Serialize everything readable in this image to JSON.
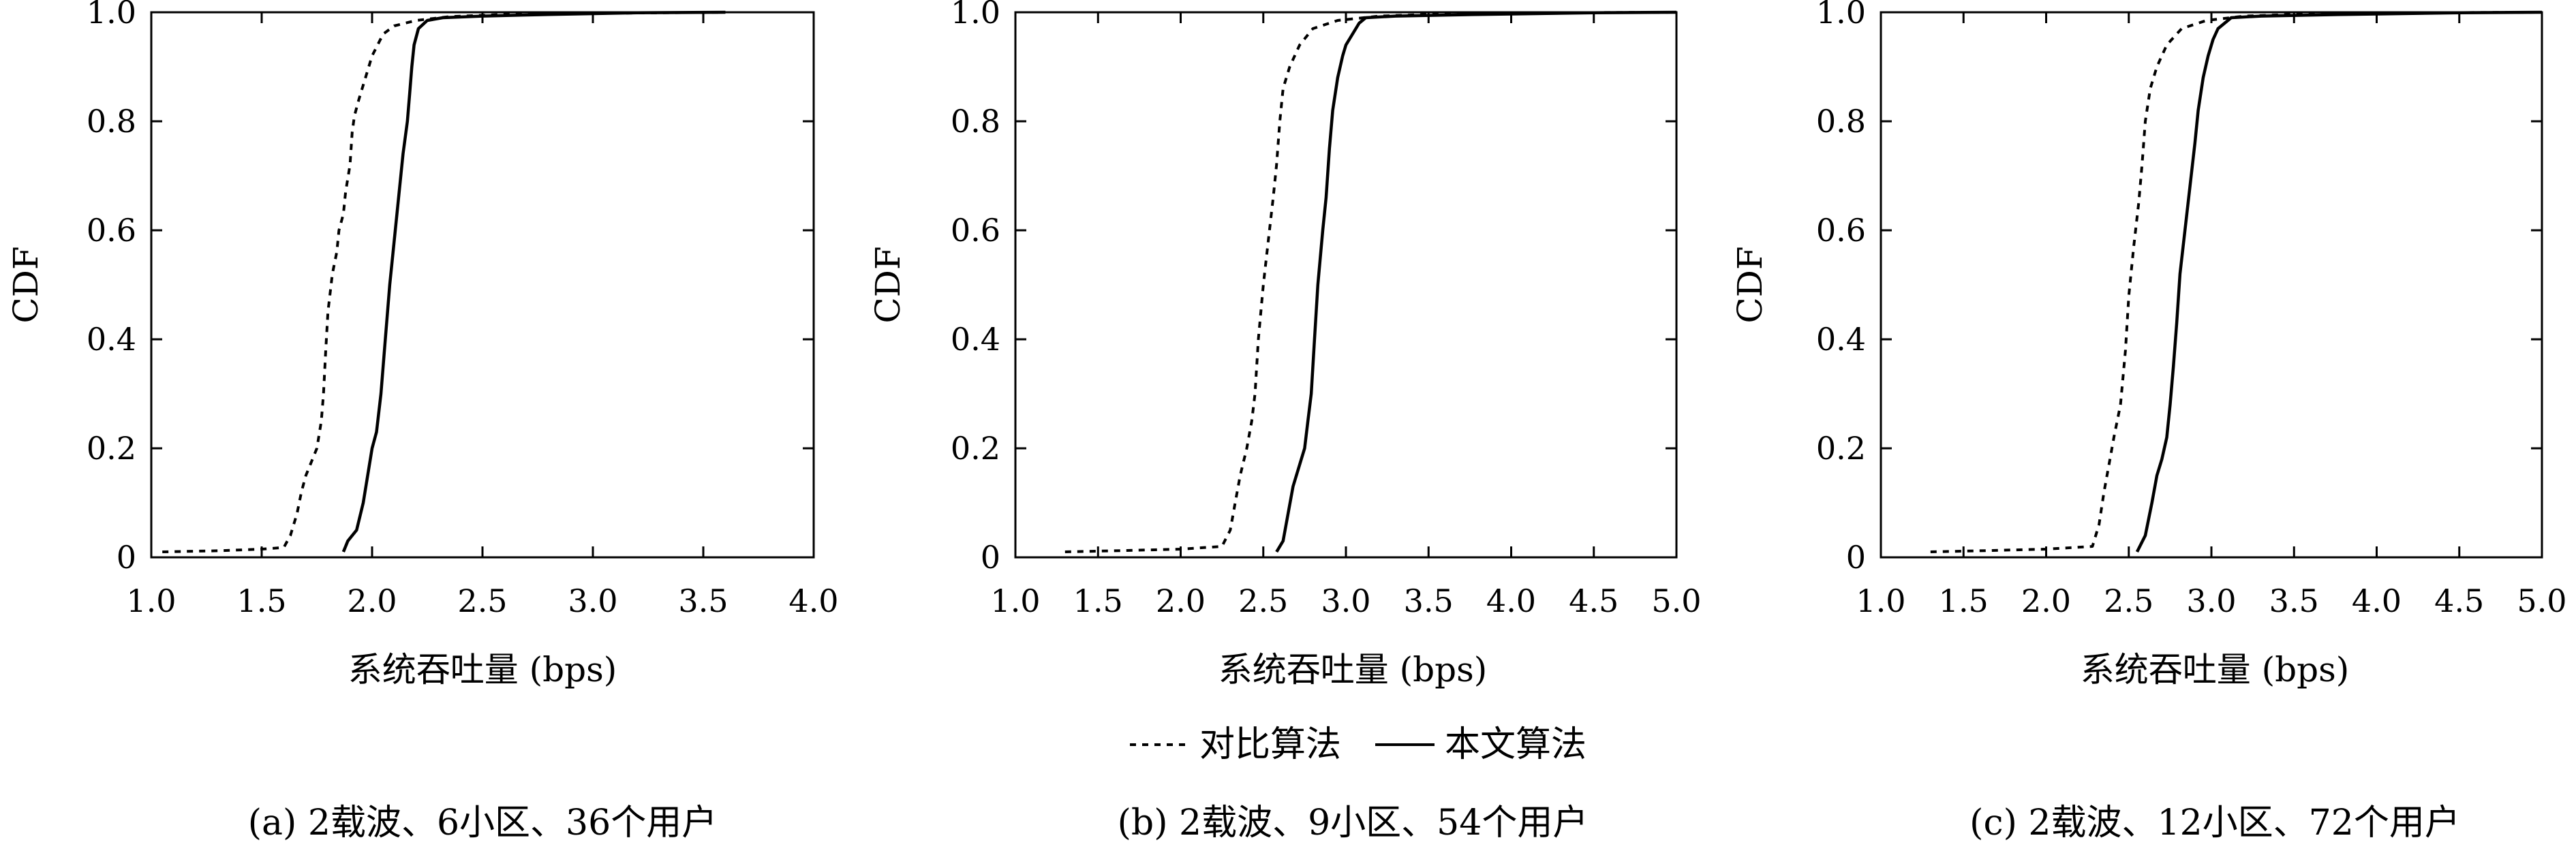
{
  "legend": {
    "series_a": "对比算法",
    "series_b": "本文算法"
  },
  "chart_data": [
    {
      "type": "line",
      "caption": "(a) 2载波、6小区、36个用户",
      "xlabel": "系统吞吐量 (bps)",
      "ylabel": "CDF",
      "xlim": [
        1.0,
        4.0
      ],
      "ylim": [
        0,
        1.0
      ],
      "x_ticks": [
        "1.0",
        "1.5",
        "2.0",
        "2.5",
        "3.0",
        "3.5",
        "4.0"
      ],
      "y_ticks": [
        "0",
        "0.2",
        "0.4",
        "0.6",
        "0.8",
        "1.0"
      ],
      "grid": false,
      "legend_position": "bottom-center",
      "series": [
        {
          "name": "对比算法",
          "style": "dotted",
          "points": [
            [
              1.05,
              0.01
            ],
            [
              1.3,
              0.012
            ],
            [
              1.5,
              0.015
            ],
            [
              1.6,
              0.018
            ],
            [
              1.63,
              0.04
            ],
            [
              1.66,
              0.08
            ],
            [
              1.68,
              0.12
            ],
            [
              1.7,
              0.15
            ],
            [
              1.72,
              0.17
            ],
            [
              1.75,
              0.2
            ],
            [
              1.77,
              0.25
            ],
            [
              1.78,
              0.3
            ],
            [
              1.79,
              0.38
            ],
            [
              1.8,
              0.45
            ],
            [
              1.82,
              0.52
            ],
            [
              1.84,
              0.56
            ],
            [
              1.85,
              0.6
            ],
            [
              1.87,
              0.63
            ],
            [
              1.88,
              0.67
            ],
            [
              1.9,
              0.72
            ],
            [
              1.91,
              0.78
            ],
            [
              1.92,
              0.81
            ],
            [
              1.94,
              0.84
            ],
            [
              1.97,
              0.88
            ],
            [
              2.0,
              0.92
            ],
            [
              2.05,
              0.96
            ],
            [
              2.1,
              0.975
            ],
            [
              2.2,
              0.985
            ],
            [
              2.35,
              0.992
            ],
            [
              2.6,
              0.996
            ],
            [
              3.0,
              0.998
            ],
            [
              3.6,
              1.0
            ]
          ]
        },
        {
          "name": "本文算法",
          "style": "solid",
          "points": [
            [
              1.87,
              0.01
            ],
            [
              1.89,
              0.03
            ],
            [
              1.93,
              0.05
            ],
            [
              1.96,
              0.1
            ],
            [
              1.98,
              0.15
            ],
            [
              2.0,
              0.2
            ],
            [
              2.02,
              0.23
            ],
            [
              2.04,
              0.3
            ],
            [
              2.06,
              0.4
            ],
            [
              2.08,
              0.5
            ],
            [
              2.1,
              0.58
            ],
            [
              2.12,
              0.66
            ],
            [
              2.14,
              0.74
            ],
            [
              2.16,
              0.8
            ],
            [
              2.17,
              0.85
            ],
            [
              2.18,
              0.9
            ],
            [
              2.19,
              0.94
            ],
            [
              2.21,
              0.97
            ],
            [
              2.25,
              0.985
            ],
            [
              2.32,
              0.99
            ],
            [
              2.5,
              0.993
            ],
            [
              2.8,
              0.996
            ],
            [
              3.2,
              0.999
            ],
            [
              3.6,
              1.0
            ]
          ]
        }
      ]
    },
    {
      "type": "line",
      "caption": "(b) 2载波、9小区、54个用户",
      "xlabel": "系统吞吐量 (bps)",
      "ylabel": "CDF",
      "xlim": [
        1.0,
        5.0
      ],
      "ylim": [
        0,
        1.0
      ],
      "x_ticks": [
        "1.0",
        "1.5",
        "2.0",
        "2.5",
        "3.0",
        "3.5",
        "4.0",
        "4.5",
        "5.0"
      ],
      "y_ticks": [
        "0",
        "0.2",
        "0.4",
        "0.6",
        "0.8",
        "1.0"
      ],
      "grid": false,
      "series": [
        {
          "name": "对比算法",
          "style": "dotted",
          "points": [
            [
              1.3,
              0.01
            ],
            [
              1.6,
              0.012
            ],
            [
              2.0,
              0.015
            ],
            [
              2.25,
              0.02
            ],
            [
              2.3,
              0.05
            ],
            [
              2.33,
              0.1
            ],
            [
              2.36,
              0.15
            ],
            [
              2.4,
              0.2
            ],
            [
              2.43,
              0.25
            ],
            [
              2.45,
              0.3
            ],
            [
              2.47,
              0.4
            ],
            [
              2.5,
              0.5
            ],
            [
              2.53,
              0.58
            ],
            [
              2.56,
              0.66
            ],
            [
              2.58,
              0.72
            ],
            [
              2.6,
              0.8
            ],
            [
              2.62,
              0.86
            ],
            [
              2.66,
              0.9
            ],
            [
              2.72,
              0.94
            ],
            [
              2.8,
              0.97
            ],
            [
              2.95,
              0.985
            ],
            [
              3.2,
              0.993
            ],
            [
              3.6,
              0.997
            ],
            [
              4.2,
              0.999
            ],
            [
              5.0,
              1.0
            ]
          ]
        },
        {
          "name": "本文算法",
          "style": "solid",
          "points": [
            [
              2.58,
              0.01
            ],
            [
              2.62,
              0.03
            ],
            [
              2.65,
              0.08
            ],
            [
              2.68,
              0.13
            ],
            [
              2.72,
              0.17
            ],
            [
              2.75,
              0.2
            ],
            [
              2.77,
              0.25
            ],
            [
              2.79,
              0.3
            ],
            [
              2.81,
              0.4
            ],
            [
              2.83,
              0.5
            ],
            [
              2.86,
              0.6
            ],
            [
              2.88,
              0.66
            ],
            [
              2.9,
              0.75
            ],
            [
              2.92,
              0.82
            ],
            [
              2.95,
              0.88
            ],
            [
              2.98,
              0.92
            ],
            [
              3.0,
              0.94
            ],
            [
              3.04,
              0.96
            ],
            [
              3.08,
              0.98
            ],
            [
              3.12,
              0.99
            ],
            [
              3.3,
              0.993
            ],
            [
              3.8,
              0.996
            ],
            [
              4.5,
              0.999
            ],
            [
              5.0,
              1.0
            ]
          ]
        }
      ]
    },
    {
      "type": "line",
      "caption": "(c) 2载波、12小区、72个用户",
      "xlabel": "系统吞吐量 (bps)",
      "ylabel": "CDF",
      "xlim": [
        1.0,
        5.0
      ],
      "ylim": [
        0,
        1.0
      ],
      "x_ticks": [
        "1.0",
        "1.5",
        "2.0",
        "2.5",
        "3.0",
        "3.5",
        "4.0",
        "4.5",
        "5.0"
      ],
      "y_ticks": [
        "0",
        "0.2",
        "0.4",
        "0.6",
        "0.8",
        "1.0"
      ],
      "grid": false,
      "series": [
        {
          "name": "对比算法",
          "style": "dotted",
          "points": [
            [
              1.3,
              0.01
            ],
            [
              1.6,
              0.012
            ],
            [
              2.0,
              0.015
            ],
            [
              2.28,
              0.02
            ],
            [
              2.32,
              0.06
            ],
            [
              2.35,
              0.12
            ],
            [
              2.38,
              0.17
            ],
            [
              2.41,
              0.22
            ],
            [
              2.45,
              0.28
            ],
            [
              2.48,
              0.38
            ],
            [
              2.5,
              0.48
            ],
            [
              2.53,
              0.57
            ],
            [
              2.56,
              0.65
            ],
            [
              2.58,
              0.72
            ],
            [
              2.6,
              0.8
            ],
            [
              2.63,
              0.86
            ],
            [
              2.67,
              0.9
            ],
            [
              2.73,
              0.94
            ],
            [
              2.82,
              0.97
            ],
            [
              2.97,
              0.985
            ],
            [
              3.2,
              0.993
            ],
            [
              3.6,
              0.997
            ],
            [
              4.2,
              0.999
            ],
            [
              5.0,
              1.0
            ]
          ]
        },
        {
          "name": "本文算法",
          "style": "solid",
          "points": [
            [
              2.55,
              0.01
            ],
            [
              2.6,
              0.04
            ],
            [
              2.64,
              0.1
            ],
            [
              2.67,
              0.15
            ],
            [
              2.7,
              0.18
            ],
            [
              2.73,
              0.22
            ],
            [
              2.75,
              0.28
            ],
            [
              2.77,
              0.35
            ],
            [
              2.79,
              0.43
            ],
            [
              2.81,
              0.52
            ],
            [
              2.84,
              0.6
            ],
            [
              2.87,
              0.68
            ],
            [
              2.9,
              0.76
            ],
            [
              2.92,
              0.82
            ],
            [
              2.95,
              0.88
            ],
            [
              2.98,
              0.92
            ],
            [
              3.01,
              0.95
            ],
            [
              3.04,
              0.97
            ],
            [
              3.08,
              0.98
            ],
            [
              3.12,
              0.99
            ],
            [
              3.3,
              0.993
            ],
            [
              3.8,
              0.996
            ],
            [
              4.5,
              0.999
            ],
            [
              5.0,
              1.0
            ]
          ]
        }
      ]
    }
  ]
}
